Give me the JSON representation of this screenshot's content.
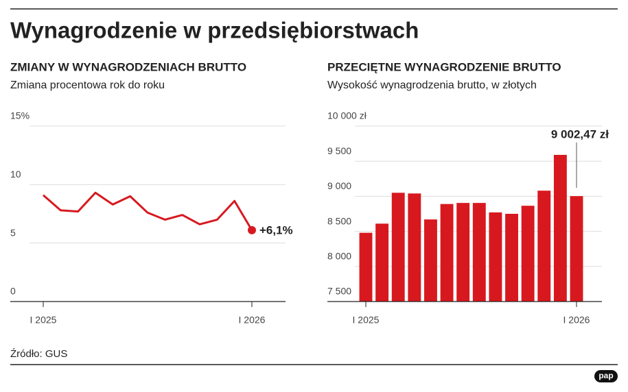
{
  "title": "Wynagrodzenie w przedsiębiorstwach",
  "source": "Źródło: GUS",
  "logo": "pap",
  "chart_data": [
    {
      "type": "line",
      "title": "ZMIANY W WYNAGRODZENIACH BRUTTO",
      "subtitle": "Zmiana procentowa rok do roku",
      "categories": [
        "I 2025",
        null,
        null,
        null,
        null,
        null,
        null,
        null,
        null,
        null,
        null,
        null,
        "I 2026"
      ],
      "values": [
        9.1,
        7.8,
        7.7,
        9.3,
        8.3,
        9.0,
        7.6,
        7.0,
        7.4,
        6.6,
        7.0,
        8.6,
        6.1
      ],
      "value_labels": [
        null,
        null,
        null,
        null,
        null,
        null,
        null,
        null,
        null,
        null,
        null,
        null,
        "+6,1%"
      ],
      "color": "#d7191f",
      "ylim": [
        0,
        15
      ],
      "yticks": [
        0,
        5,
        10,
        {
          "value": 15,
          "label": "15%"
        }
      ],
      "grid": true
    },
    {
      "type": "bar",
      "title": "PRZECIĘTNE WYNAGRODZENIE BRUTTO",
      "subtitle": "Wysokość wynagrodzenia brutto, w złotych",
      "categories": [
        "I 2025",
        null,
        null,
        null,
        null,
        null,
        null,
        null,
        null,
        null,
        null,
        null,
        null,
        "I 2026"
      ],
      "values": [
        8480,
        8610,
        9050,
        9040,
        8670,
        8890,
        8905,
        8905,
        8770,
        8750,
        8865,
        9080,
        9590,
        9002.47
      ],
      "value_labels": [
        null,
        null,
        null,
        null,
        null,
        null,
        null,
        null,
        null,
        null,
        null,
        null,
        null,
        "9 002,47 zł"
      ],
      "color": "#d7191f",
      "ylim": [
        7500,
        10000
      ],
      "yticks": [
        {
          "value": 7500,
          "label": "7 500"
        },
        {
          "value": 8000,
          "label": "8 000"
        },
        {
          "value": 8500,
          "label": "8 500"
        },
        {
          "value": 9000,
          "label": "9 000"
        },
        {
          "value": 9500,
          "label": "9 500"
        },
        {
          "value": 10000,
          "label": "10 000 zł"
        }
      ],
      "grid": true
    }
  ]
}
